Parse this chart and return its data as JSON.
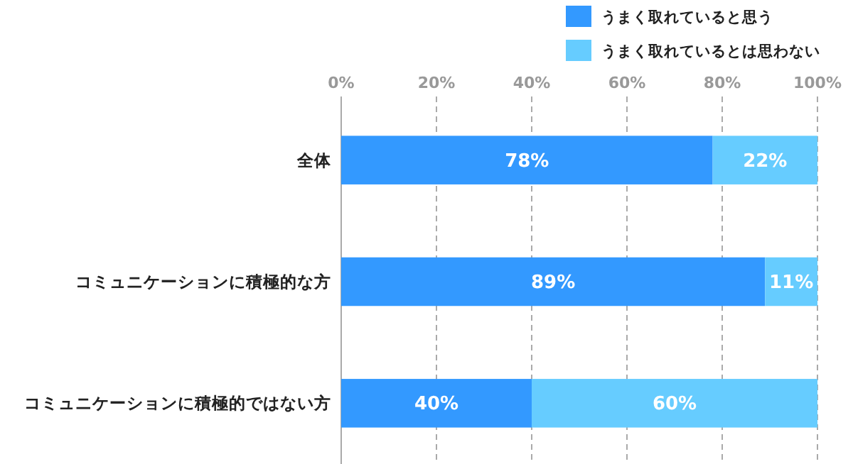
{
  "chart_data": {
    "type": "bar",
    "orientation": "horizontal",
    "stacked": true,
    "categories": [
      "全体",
      "コミュニケーションに積極的な方",
      "コミュニケーションに積極的ではない方"
    ],
    "series": [
      {
        "name": "うまく取れていると思う",
        "color": "#3399ff",
        "values": [
          78,
          89,
          40
        ],
        "value_labels": [
          "78%",
          "89%",
          "40%"
        ]
      },
      {
        "name": "うまく取れているとは思わない",
        "color": "#66ccff",
        "values": [
          22,
          11,
          60
        ],
        "value_labels": [
          "22%",
          "11%",
          "60%"
        ]
      }
    ],
    "xlim": [
      0,
      100
    ],
    "xticks": [
      {
        "value": 0,
        "label": "0%"
      },
      {
        "value": 20,
        "label": "20%"
      },
      {
        "value": 40,
        "label": "40%"
      },
      {
        "value": 60,
        "label": "60%"
      },
      {
        "value": 80,
        "label": "80%"
      },
      {
        "value": 100,
        "label": "100%"
      }
    ],
    "grid": "x",
    "legend": "top right"
  }
}
